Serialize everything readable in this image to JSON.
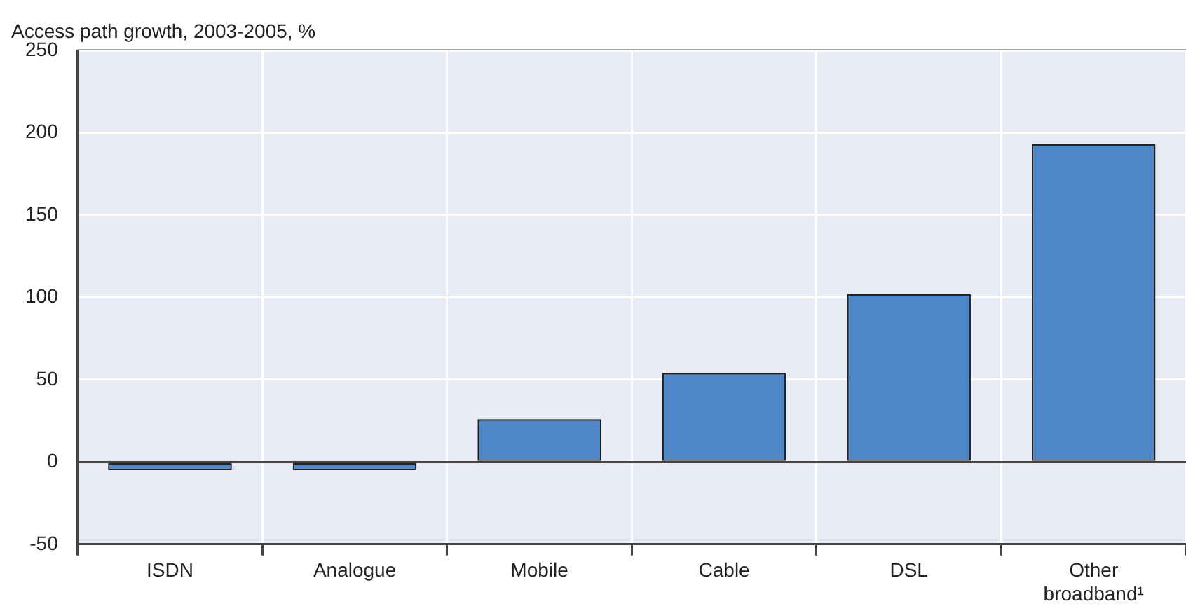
{
  "chart_data": {
    "type": "bar",
    "ylabel": "Access path growth, 2003-2005, %",
    "categories": [
      "ISDN",
      "Analogue",
      "Mobile",
      "Cable",
      "DSL",
      "Other broadband¹"
    ],
    "values": [
      -5,
      -5,
      26,
      54,
      102,
      193
    ],
    "color": "#4d87c7",
    "ylim": [
      -50,
      250
    ],
    "yticks": [
      -50,
      0,
      50,
      100,
      150,
      200,
      250
    ],
    "grid": true
  }
}
